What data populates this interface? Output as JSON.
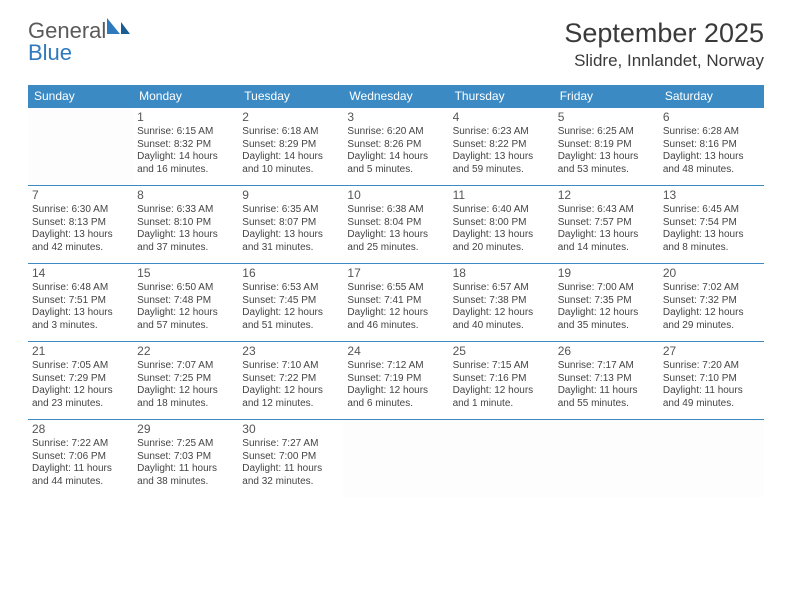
{
  "logo": {
    "general": "General",
    "blue": "Blue"
  },
  "title": "September 2025",
  "location": "Slidre, Innlandet, Norway",
  "colors": {
    "header_bg": "#3b8ac4",
    "header_text": "#ffffff",
    "border": "#3b8ac4",
    "title_text": "#3a3a3a",
    "cell_text": "#444444",
    "logo_gray": "#5a5a5a",
    "logo_blue": "#2f79bd"
  },
  "dow": [
    "Sunday",
    "Monday",
    "Tuesday",
    "Wednesday",
    "Thursday",
    "Friday",
    "Saturday"
  ],
  "weeks": [
    [
      {
        "blank": true
      },
      {
        "day": "1",
        "sunrise": "Sunrise: 6:15 AM",
        "sunset": "Sunset: 8:32 PM",
        "daylight1": "Daylight: 14 hours",
        "daylight2": "and 16 minutes."
      },
      {
        "day": "2",
        "sunrise": "Sunrise: 6:18 AM",
        "sunset": "Sunset: 8:29 PM",
        "daylight1": "Daylight: 14 hours",
        "daylight2": "and 10 minutes."
      },
      {
        "day": "3",
        "sunrise": "Sunrise: 6:20 AM",
        "sunset": "Sunset: 8:26 PM",
        "daylight1": "Daylight: 14 hours",
        "daylight2": "and 5 minutes."
      },
      {
        "day": "4",
        "sunrise": "Sunrise: 6:23 AM",
        "sunset": "Sunset: 8:22 PM",
        "daylight1": "Daylight: 13 hours",
        "daylight2": "and 59 minutes."
      },
      {
        "day": "5",
        "sunrise": "Sunrise: 6:25 AM",
        "sunset": "Sunset: 8:19 PM",
        "daylight1": "Daylight: 13 hours",
        "daylight2": "and 53 minutes."
      },
      {
        "day": "6",
        "sunrise": "Sunrise: 6:28 AM",
        "sunset": "Sunset: 8:16 PM",
        "daylight1": "Daylight: 13 hours",
        "daylight2": "and 48 minutes."
      }
    ],
    [
      {
        "day": "7",
        "sunrise": "Sunrise: 6:30 AM",
        "sunset": "Sunset: 8:13 PM",
        "daylight1": "Daylight: 13 hours",
        "daylight2": "and 42 minutes."
      },
      {
        "day": "8",
        "sunrise": "Sunrise: 6:33 AM",
        "sunset": "Sunset: 8:10 PM",
        "daylight1": "Daylight: 13 hours",
        "daylight2": "and 37 minutes."
      },
      {
        "day": "9",
        "sunrise": "Sunrise: 6:35 AM",
        "sunset": "Sunset: 8:07 PM",
        "daylight1": "Daylight: 13 hours",
        "daylight2": "and 31 minutes."
      },
      {
        "day": "10",
        "sunrise": "Sunrise: 6:38 AM",
        "sunset": "Sunset: 8:04 PM",
        "daylight1": "Daylight: 13 hours",
        "daylight2": "and 25 minutes."
      },
      {
        "day": "11",
        "sunrise": "Sunrise: 6:40 AM",
        "sunset": "Sunset: 8:00 PM",
        "daylight1": "Daylight: 13 hours",
        "daylight2": "and 20 minutes."
      },
      {
        "day": "12",
        "sunrise": "Sunrise: 6:43 AM",
        "sunset": "Sunset: 7:57 PM",
        "daylight1": "Daylight: 13 hours",
        "daylight2": "and 14 minutes."
      },
      {
        "day": "13",
        "sunrise": "Sunrise: 6:45 AM",
        "sunset": "Sunset: 7:54 PM",
        "daylight1": "Daylight: 13 hours",
        "daylight2": "and 8 minutes."
      }
    ],
    [
      {
        "day": "14",
        "sunrise": "Sunrise: 6:48 AM",
        "sunset": "Sunset: 7:51 PM",
        "daylight1": "Daylight: 13 hours",
        "daylight2": "and 3 minutes."
      },
      {
        "day": "15",
        "sunrise": "Sunrise: 6:50 AM",
        "sunset": "Sunset: 7:48 PM",
        "daylight1": "Daylight: 12 hours",
        "daylight2": "and 57 minutes."
      },
      {
        "day": "16",
        "sunrise": "Sunrise: 6:53 AM",
        "sunset": "Sunset: 7:45 PM",
        "daylight1": "Daylight: 12 hours",
        "daylight2": "and 51 minutes."
      },
      {
        "day": "17",
        "sunrise": "Sunrise: 6:55 AM",
        "sunset": "Sunset: 7:41 PM",
        "daylight1": "Daylight: 12 hours",
        "daylight2": "and 46 minutes."
      },
      {
        "day": "18",
        "sunrise": "Sunrise: 6:57 AM",
        "sunset": "Sunset: 7:38 PM",
        "daylight1": "Daylight: 12 hours",
        "daylight2": "and 40 minutes."
      },
      {
        "day": "19",
        "sunrise": "Sunrise: 7:00 AM",
        "sunset": "Sunset: 7:35 PM",
        "daylight1": "Daylight: 12 hours",
        "daylight2": "and 35 minutes."
      },
      {
        "day": "20",
        "sunrise": "Sunrise: 7:02 AM",
        "sunset": "Sunset: 7:32 PM",
        "daylight1": "Daylight: 12 hours",
        "daylight2": "and 29 minutes."
      }
    ],
    [
      {
        "day": "21",
        "sunrise": "Sunrise: 7:05 AM",
        "sunset": "Sunset: 7:29 PM",
        "daylight1": "Daylight: 12 hours",
        "daylight2": "and 23 minutes."
      },
      {
        "day": "22",
        "sunrise": "Sunrise: 7:07 AM",
        "sunset": "Sunset: 7:25 PM",
        "daylight1": "Daylight: 12 hours",
        "daylight2": "and 18 minutes."
      },
      {
        "day": "23",
        "sunrise": "Sunrise: 7:10 AM",
        "sunset": "Sunset: 7:22 PM",
        "daylight1": "Daylight: 12 hours",
        "daylight2": "and 12 minutes."
      },
      {
        "day": "24",
        "sunrise": "Sunrise: 7:12 AM",
        "sunset": "Sunset: 7:19 PM",
        "daylight1": "Daylight: 12 hours",
        "daylight2": "and 6 minutes."
      },
      {
        "day": "25",
        "sunrise": "Sunrise: 7:15 AM",
        "sunset": "Sunset: 7:16 PM",
        "daylight1": "Daylight: 12 hours",
        "daylight2": "and 1 minute."
      },
      {
        "day": "26",
        "sunrise": "Sunrise: 7:17 AM",
        "sunset": "Sunset: 7:13 PM",
        "daylight1": "Daylight: 11 hours",
        "daylight2": "and 55 minutes."
      },
      {
        "day": "27",
        "sunrise": "Sunrise: 7:20 AM",
        "sunset": "Sunset: 7:10 PM",
        "daylight1": "Daylight: 11 hours",
        "daylight2": "and 49 minutes."
      }
    ],
    [
      {
        "day": "28",
        "sunrise": "Sunrise: 7:22 AM",
        "sunset": "Sunset: 7:06 PM",
        "daylight1": "Daylight: 11 hours",
        "daylight2": "and 44 minutes."
      },
      {
        "day": "29",
        "sunrise": "Sunrise: 7:25 AM",
        "sunset": "Sunset: 7:03 PM",
        "daylight1": "Daylight: 11 hours",
        "daylight2": "and 38 minutes."
      },
      {
        "day": "30",
        "sunrise": "Sunrise: 7:27 AM",
        "sunset": "Sunset: 7:00 PM",
        "daylight1": "Daylight: 11 hours",
        "daylight2": "and 32 minutes."
      },
      {
        "blank": true
      },
      {
        "blank": true
      },
      {
        "blank": true
      },
      {
        "blank": true
      }
    ]
  ]
}
